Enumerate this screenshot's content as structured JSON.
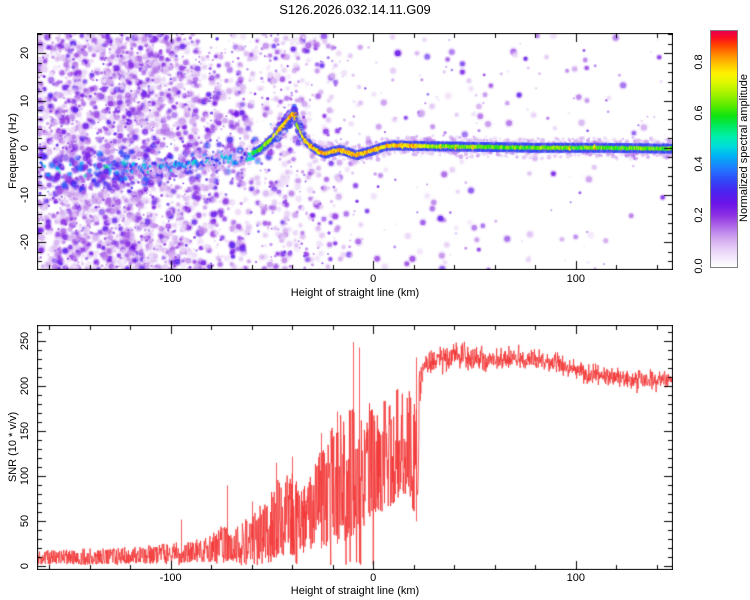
{
  "title": "S126.2026.032.14.11.G09",
  "colors": {
    "background": "#ffffff",
    "axis": "#000000",
    "trace": "#f23535"
  },
  "top_panel": {
    "xlabel": "Height of straight line (km)",
    "ylabel": "Frequency (Hz)",
    "xticks": [
      {
        "v": -100,
        "label": "-100"
      },
      {
        "v": 0,
        "label": "0"
      },
      {
        "v": 100,
        "label": "100"
      }
    ],
    "yticks": [
      {
        "v": 20,
        "label": "20"
      },
      {
        "v": 10,
        "label": "10"
      },
      {
        "v": 0,
        "label": "0"
      },
      {
        "v": -10,
        "label": "-10"
      },
      {
        "v": -20,
        "label": "-20"
      }
    ]
  },
  "bottom_panel": {
    "xlabel": "Height of straight line (km)",
    "ylabel": "SNR (10 * v/v)",
    "xticks": [
      {
        "v": -100,
        "label": "-100"
      },
      {
        "v": 0,
        "label": "0"
      },
      {
        "v": 100,
        "label": "100"
      }
    ],
    "yticks": [
      {
        "v": 0,
        "label": "0"
      },
      {
        "v": 50,
        "label": "50"
      },
      {
        "v": 100,
        "label": "100"
      },
      {
        "v": 150,
        "label": "150"
      },
      {
        "v": 200,
        "label": "200"
      },
      {
        "v": 250,
        "label": "250"
      }
    ]
  },
  "colorbar": {
    "label": "Normalized spectral amplitude",
    "vmax": 0.925,
    "ticks": [
      {
        "v": 0.0,
        "label": "0.0"
      },
      {
        "v": 0.2,
        "label": "0.2"
      },
      {
        "v": 0.4,
        "label": "0.4"
      },
      {
        "v": 0.6,
        "label": "0.6"
      },
      {
        "v": 0.8,
        "label": "0.8"
      }
    ],
    "gradient": [
      [
        0.0,
        "#ffffff"
      ],
      [
        0.03,
        "#f6eefc"
      ],
      [
        0.07,
        "#e9d4f7"
      ],
      [
        0.12,
        "#d2a8ef"
      ],
      [
        0.17,
        "#b06ce8"
      ],
      [
        0.22,
        "#8d2fe3"
      ],
      [
        0.27,
        "#6a14e8"
      ],
      [
        0.32,
        "#4b22f0"
      ],
      [
        0.37,
        "#2f4bf8"
      ],
      [
        0.42,
        "#1e7dff"
      ],
      [
        0.47,
        "#00b2f5"
      ],
      [
        0.51,
        "#00dcdc"
      ],
      [
        0.55,
        "#00efae"
      ],
      [
        0.6,
        "#00e95a"
      ],
      [
        0.64,
        "#10e410"
      ],
      [
        0.68,
        "#52ea00"
      ],
      [
        0.73,
        "#9ff200"
      ],
      [
        0.78,
        "#dcf800"
      ],
      [
        0.82,
        "#fff200"
      ],
      [
        0.86,
        "#ffc400"
      ],
      [
        0.9,
        "#ff8800"
      ],
      [
        0.94,
        "#ff4400"
      ],
      [
        0.97,
        "#fb0f1f"
      ],
      [
        1.0,
        "#e8004f"
      ]
    ]
  },
  "render": {
    "seed": 1234
  },
  "chart_data": [
    {
      "type": "heatmap",
      "panel": "top",
      "title": "S126.2026.032.14.11.G09",
      "xlabel": "Height of straight line (km)",
      "ylabel": "Frequency (Hz)",
      "xlim": [
        -166,
        148
      ],
      "ylim": [
        -25.9,
        24.3
      ],
      "xticks": [
        -100,
        0,
        100
      ],
      "yticks": [
        -20,
        -10,
        0,
        10,
        20
      ],
      "grid": false,
      "colorbar_label": "Normalized spectral amplitude",
      "colorbar_ticks": [
        0.0,
        0.2,
        0.4,
        0.6,
        0.8
      ],
      "ridge_height_freq_amp": [
        [
          -166,
          -5.0,
          0.25
        ],
        [
          -140,
          -5.0,
          0.26
        ],
        [
          -120,
          -4.5,
          0.3
        ],
        [
          -100,
          -4.0,
          0.36
        ],
        [
          -85,
          -3.0,
          0.43
        ],
        [
          -70,
          -2.5,
          0.5
        ],
        [
          -62,
          -1.8,
          0.56
        ],
        [
          -55,
          -0.2,
          0.66
        ],
        [
          -50,
          1.8,
          0.76
        ],
        [
          -45,
          4.2,
          0.84
        ],
        [
          -41,
          6.3,
          0.87
        ],
        [
          -39,
          7.3,
          0.85
        ],
        [
          -37,
          4.8,
          0.8
        ],
        [
          -35,
          2.8,
          0.84
        ],
        [
          -33,
          1.4,
          0.82
        ],
        [
          -30,
          0.2,
          0.86
        ],
        [
          -27,
          -0.6,
          0.84
        ],
        [
          -24,
          -1.3,
          0.88
        ],
        [
          -20,
          -0.8,
          0.85
        ],
        [
          -16,
          -0.4,
          0.88
        ],
        [
          -12,
          -1.0,
          0.86
        ],
        [
          -8,
          -1.6,
          0.9
        ],
        [
          -4,
          -1.1,
          0.86
        ],
        [
          0,
          -0.6,
          0.88
        ],
        [
          5,
          0.2,
          0.86
        ],
        [
          10,
          0.5,
          0.82
        ],
        [
          20,
          0.4,
          0.84
        ],
        [
          30,
          0.3,
          0.7
        ],
        [
          50,
          0.2,
          0.68
        ],
        [
          80,
          0.0,
          0.68
        ],
        [
          110,
          0.0,
          0.67
        ],
        [
          148,
          -0.2,
          0.68
        ]
      ],
      "noise": {
        "description": "dense purple speckle noise across all frequencies for heights below about -55 km, tapering out by -25 km; sparse faint specks at positive heights; darker blue noise band concentrated around the ridge for heights below -50 km",
        "dense_region_max_height_km": -55,
        "sparse_region_min_height_km": -25
      }
    },
    {
      "type": "line",
      "panel": "bottom",
      "xlabel": "Height of straight line (km)",
      "ylabel": "SNR (10 * v/v)",
      "xlim": [
        -166,
        148
      ],
      "ylim": [
        0,
        268
      ],
      "xticks": [
        -100,
        0,
        100
      ],
      "yticks": [
        0,
        50,
        100,
        150,
        200,
        250
      ],
      "color": "#f23535",
      "envelope_height_lo_hi": [
        [
          -166,
          2,
          18
        ],
        [
          -150,
          2,
          19
        ],
        [
          -140,
          2,
          20
        ],
        [
          -130,
          3,
          20
        ],
        [
          -120,
          3,
          22
        ],
        [
          -110,
          3,
          24
        ],
        [
          -100,
          4,
          26
        ],
        [
          -95,
          4,
          30
        ],
        [
          -90,
          4,
          28
        ],
        [
          -85,
          5,
          32
        ],
        [
          -80,
          5,
          35
        ],
        [
          -75,
          6,
          45
        ],
        [
          -70,
          6,
          42
        ],
        [
          -65,
          7,
          48
        ],
        [
          -60,
          8,
          60
        ],
        [
          -56,
          8,
          68
        ],
        [
          -52,
          10,
          75
        ],
        [
          -48,
          10,
          95
        ],
        [
          -44,
          12,
          100
        ],
        [
          -40,
          12,
          110
        ],
        [
          -37,
          15,
          90
        ],
        [
          -34,
          15,
          95
        ],
        [
          -31,
          18,
          105
        ],
        [
          -28,
          20,
          120
        ],
        [
          -25,
          20,
          135
        ],
        [
          -22,
          22,
          150
        ],
        [
          -19,
          25,
          160
        ],
        [
          -16,
          25,
          170
        ],
        [
          -13,
          30,
          180
        ],
        [
          -10,
          35,
          200
        ],
        [
          -8,
          40,
          185
        ],
        [
          -6,
          45,
          190
        ],
        [
          -4,
          45,
          180
        ],
        [
          -2,
          50,
          185
        ],
        [
          0,
          55,
          180
        ],
        [
          2,
          55,
          185
        ],
        [
          4,
          60,
          190
        ],
        [
          6,
          60,
          185
        ],
        [
          8,
          65,
          195
        ],
        [
          10,
          70,
          195
        ],
        [
          12,
          75,
          200
        ],
        [
          14,
          75,
          205
        ],
        [
          16,
          80,
          205
        ],
        [
          18,
          75,
          195
        ],
        [
          20,
          60,
          185
        ],
        [
          21.5,
          45,
          210
        ],
        [
          23,
          150,
          240
        ],
        [
          25,
          185,
          245
        ],
        [
          28,
          195,
          248
        ],
        [
          32,
          200,
          252
        ],
        [
          36,
          200,
          255
        ],
        [
          40,
          205,
          255
        ],
        [
          45,
          202,
          252
        ],
        [
          50,
          200,
          248
        ],
        [
          55,
          198,
          245
        ],
        [
          60,
          198,
          242
        ],
        [
          70,
          195,
          240
        ],
        [
          80,
          193,
          238
        ],
        [
          90,
          190,
          235
        ],
        [
          100,
          190,
          232
        ],
        [
          110,
          188,
          230
        ],
        [
          120,
          186,
          230
        ],
        [
          130,
          185,
          232
        ],
        [
          140,
          184,
          228
        ],
        [
          148,
          186,
          226
        ]
      ],
      "spikes_height_value": [
        [
          -95,
          52
        ],
        [
          -72,
          90
        ],
        [
          -60,
          72
        ],
        [
          -48,
          115
        ],
        [
          -40,
          122
        ],
        [
          -26,
          148
        ],
        [
          -18,
          172
        ],
        [
          -10,
          249
        ],
        [
          -7,
          243
        ],
        [
          21,
          232
        ]
      ]
    }
  ]
}
